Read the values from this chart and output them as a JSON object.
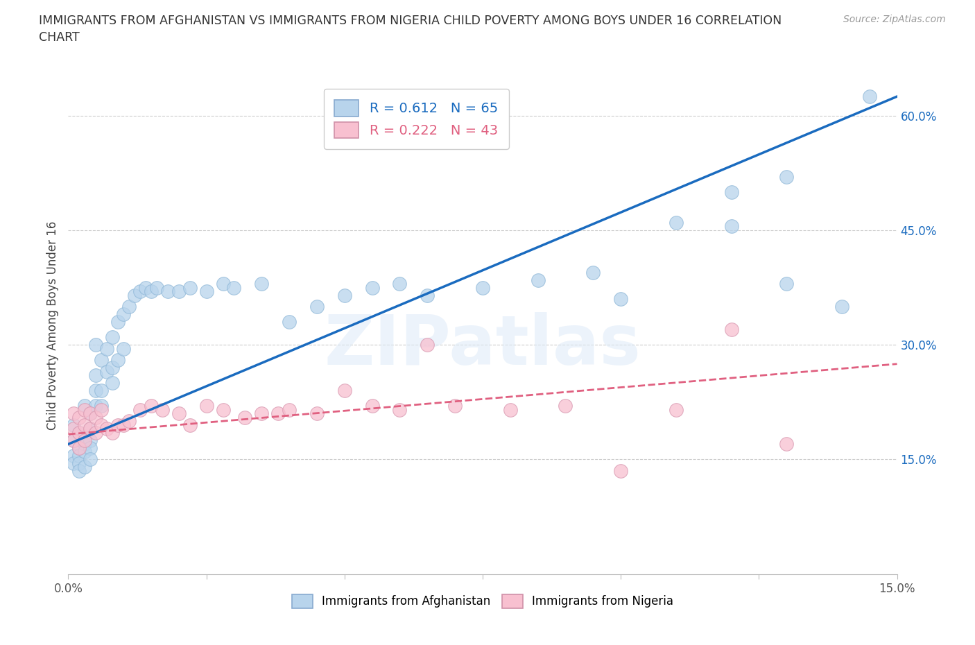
{
  "title_line1": "IMMIGRANTS FROM AFGHANISTAN VS IMMIGRANTS FROM NIGERIA CHILD POVERTY AMONG BOYS UNDER 16 CORRELATION",
  "title_line2": "CHART",
  "source": "Source: ZipAtlas.com",
  "ylabel": "Child Poverty Among Boys Under 16",
  "watermark": "ZIPatlas",
  "afghanistan_color": "#b8d4ec",
  "nigeria_color": "#f8c0d0",
  "afghanistan_line_color": "#1a6bbf",
  "nigeria_line_color": "#e06080",
  "R_afghanistan": 0.612,
  "N_afghanistan": 65,
  "R_nigeria": 0.222,
  "N_nigeria": 43,
  "xlim": [
    0,
    0.15
  ],
  "ylim": [
    0,
    0.65
  ],
  "yticks_right": [
    0.15,
    0.3,
    0.45,
    0.6
  ],
  "background_color": "#ffffff",
  "grid_color": "#cccccc",
  "afg_line_x0": 0.0,
  "afg_line_y0": 0.17,
  "afg_line_x1": 0.15,
  "afg_line_y1": 0.625,
  "nga_line_x0": 0.0,
  "nga_line_y0": 0.183,
  "nga_line_x1": 0.15,
  "nga_line_y1": 0.275,
  "afghanistan_x": [
    0.001,
    0.001,
    0.001,
    0.001,
    0.002,
    0.002,
    0.002,
    0.002,
    0.002,
    0.003,
    0.003,
    0.003,
    0.003,
    0.003,
    0.004,
    0.004,
    0.004,
    0.004,
    0.004,
    0.005,
    0.005,
    0.005,
    0.005,
    0.006,
    0.006,
    0.006,
    0.007,
    0.007,
    0.008,
    0.008,
    0.008,
    0.009,
    0.009,
    0.01,
    0.01,
    0.011,
    0.012,
    0.013,
    0.014,
    0.015,
    0.016,
    0.018,
    0.02,
    0.022,
    0.025,
    0.028,
    0.03,
    0.035,
    0.04,
    0.045,
    0.05,
    0.055,
    0.06,
    0.065,
    0.075,
    0.085,
    0.095,
    0.1,
    0.11,
    0.12,
    0.13,
    0.14,
    0.12,
    0.13,
    0.145
  ],
  "afghanistan_y": [
    0.195,
    0.175,
    0.155,
    0.145,
    0.185,
    0.165,
    0.155,
    0.145,
    0.135,
    0.22,
    0.18,
    0.17,
    0.16,
    0.14,
    0.21,
    0.19,
    0.175,
    0.165,
    0.15,
    0.3,
    0.26,
    0.24,
    0.22,
    0.28,
    0.24,
    0.22,
    0.295,
    0.265,
    0.31,
    0.27,
    0.25,
    0.33,
    0.28,
    0.34,
    0.295,
    0.35,
    0.365,
    0.37,
    0.375,
    0.37,
    0.375,
    0.37,
    0.37,
    0.375,
    0.37,
    0.38,
    0.375,
    0.38,
    0.33,
    0.35,
    0.365,
    0.375,
    0.38,
    0.365,
    0.375,
    0.385,
    0.395,
    0.36,
    0.46,
    0.455,
    0.38,
    0.35,
    0.5,
    0.52,
    0.625
  ],
  "nigeria_x": [
    0.001,
    0.001,
    0.001,
    0.002,
    0.002,
    0.002,
    0.003,
    0.003,
    0.003,
    0.004,
    0.004,
    0.005,
    0.005,
    0.006,
    0.006,
    0.007,
    0.008,
    0.009,
    0.01,
    0.011,
    0.013,
    0.015,
    0.017,
    0.02,
    0.022,
    0.025,
    0.028,
    0.032,
    0.035,
    0.038,
    0.04,
    0.045,
    0.05,
    0.055,
    0.06,
    0.065,
    0.07,
    0.08,
    0.09,
    0.1,
    0.11,
    0.12,
    0.13
  ],
  "nigeria_y": [
    0.21,
    0.19,
    0.175,
    0.205,
    0.185,
    0.165,
    0.215,
    0.195,
    0.175,
    0.21,
    0.19,
    0.205,
    0.185,
    0.215,
    0.195,
    0.19,
    0.185,
    0.195,
    0.195,
    0.2,
    0.215,
    0.22,
    0.215,
    0.21,
    0.195,
    0.22,
    0.215,
    0.205,
    0.21,
    0.21,
    0.215,
    0.21,
    0.24,
    0.22,
    0.215,
    0.3,
    0.22,
    0.215,
    0.22,
    0.135,
    0.215,
    0.32,
    0.17
  ]
}
